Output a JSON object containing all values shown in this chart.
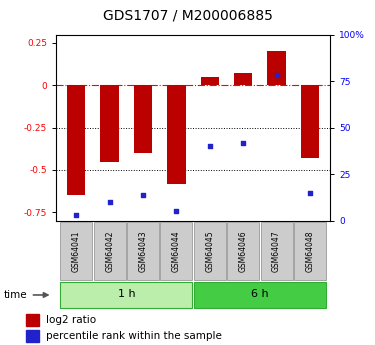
{
  "title": "GDS1707 / M200006885",
  "samples": [
    "GSM64041",
    "GSM64042",
    "GSM64043",
    "GSM64044",
    "GSM64045",
    "GSM64046",
    "GSM64047",
    "GSM64048"
  ],
  "log2_ratio": [
    -0.65,
    -0.45,
    -0.4,
    -0.58,
    0.05,
    0.07,
    0.2,
    -0.43
  ],
  "pct_rank": [
    3,
    10,
    14,
    5,
    40,
    42,
    78,
    15
  ],
  "groups": [
    {
      "label": "1 h",
      "start": 0,
      "end": 3
    },
    {
      "label": "6 h",
      "start": 4,
      "end": 7
    }
  ],
  "ylim_left": [
    -0.8,
    0.3
  ],
  "ylim_right": [
    0,
    100
  ],
  "yticks_left": [
    -0.75,
    -0.5,
    -0.25,
    0,
    0.25
  ],
  "yticks_right": [
    0,
    25,
    50,
    75,
    100
  ],
  "bar_color": "#bb0000",
  "dot_color": "#2222cc",
  "group_colors": [
    "#bbeeaa",
    "#44cc44"
  ],
  "hline_y": 0,
  "dotted_lines": [
    -0.25,
    -0.5
  ],
  "bar_width": 0.55,
  "title_fontsize": 10,
  "tick_fontsize": 6.5,
  "label_fontsize": 5.5,
  "legend_fontsize": 7.5,
  "group_fontsize": 8
}
